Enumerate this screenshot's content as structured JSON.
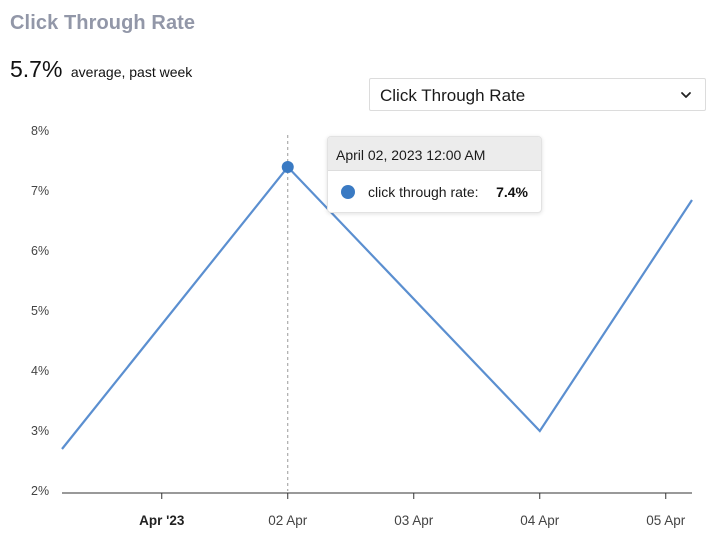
{
  "header": {
    "title": "Click Through Rate",
    "average_value": "5.7%",
    "average_caption": "average, past week"
  },
  "metric_select": {
    "selected": "Click Through Rate",
    "icon": "chevron-down-icon"
  },
  "tooltip": {
    "date": "April 02, 2023 12:00 AM",
    "series_label": "click through rate:",
    "value": "7.4%"
  },
  "colors": {
    "line": "#5b8fd0",
    "marker": "#3a7ac3",
    "title": "#9297a8"
  },
  "chart_data": {
    "type": "line",
    "title": "",
    "xlabel": "",
    "ylabel": "",
    "ylim": [
      2,
      8
    ],
    "y_ticks": [
      "2%",
      "3%",
      "4%",
      "5%",
      "6%",
      "7%",
      "8%"
    ],
    "x_ticks": [
      {
        "label": "Apr '23",
        "date": "2023-04-01T00:00",
        "bold": true
      },
      {
        "label": "02 Apr",
        "date": "2023-04-02T00:00",
        "bold": false
      },
      {
        "label": "03 Apr",
        "date": "2023-04-03T00:00",
        "bold": false
      },
      {
        "label": "04 Apr",
        "date": "2023-04-04T00:00",
        "bold": false
      },
      {
        "label": "05 Apr",
        "date": "2023-04-05T00:00",
        "bold": false
      }
    ],
    "xlim": [
      "2023-03-31T05:00",
      "2023-04-05T05:00"
    ],
    "grid": false,
    "series": [
      {
        "points": [
          {
            "x": "2023-03-31T05:00",
            "y": 2.7
          },
          {
            "x": "2023-04-02T00:00",
            "y": 7.4
          },
          {
            "x": "2023-04-04T00:00",
            "y": 3.0
          },
          {
            "x": "2023-04-05T05:00",
            "y": 6.85
          }
        ]
      }
    ],
    "highlight": {
      "x": "2023-04-02T00:00",
      "y": 7.4
    }
  }
}
